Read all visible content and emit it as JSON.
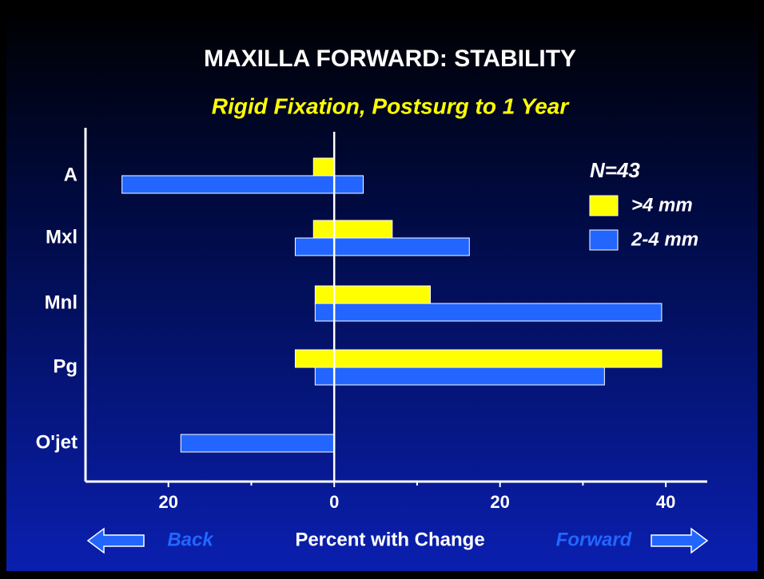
{
  "chart_data": {
    "type": "diverging_bar",
    "title": "MAXILLA FORWARD: STABILITY",
    "subtitle": "Rigid Fixation, Postsurg to 1 Year",
    "annotation": "N=43",
    "xlabel": "Percent with Change",
    "left_label": "Back",
    "right_label": "Forward",
    "categories": [
      "A",
      "Mxl",
      "Mnl",
      "Pg",
      "O'jet"
    ],
    "series": [
      {
        "name": ">4 mm",
        "color": "#ffff00",
        "back": [
          -2.5,
          -2.5,
          -2.3,
          -4.7,
          null
        ],
        "forward": [
          0,
          7,
          11.6,
          39.5,
          null
        ]
      },
      {
        "name": "2-4 mm",
        "color": "#2266ff",
        "back": [
          -25.6,
          -4.7,
          -2.3,
          -2.3,
          -18.5
        ],
        "forward": [
          3.5,
          16.3,
          39.5,
          32.6,
          0
        ]
      }
    ],
    "xlim": [
      -30,
      45
    ],
    "xticks": [
      {
        "value": -20,
        "label": "20"
      },
      0,
      20,
      40
    ],
    "minor_xticks": [
      -10,
      10,
      30
    ],
    "legend": "upper right"
  }
}
